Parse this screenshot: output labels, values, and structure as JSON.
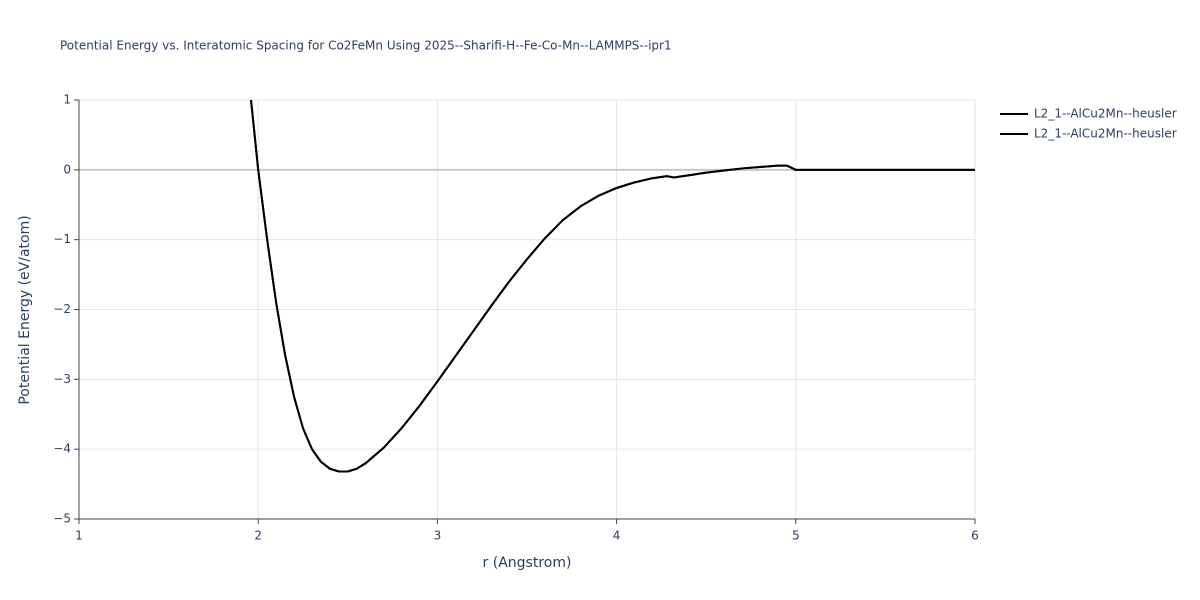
{
  "chart_data": {
    "type": "line",
    "title": "Potential Energy vs. Interatomic Spacing for Co2FeMn Using 2025--Sharifi-H--Fe-Co-Mn--LAMMPS--ipr1",
    "xlabel": "r (Angstrom)",
    "ylabel": "Potential Energy (eV/atom)",
    "x": [
      1.96,
      2.0,
      2.05,
      2.1,
      2.15,
      2.2,
      2.25,
      2.3,
      2.35,
      2.4,
      2.45,
      2.5,
      2.55,
      2.6,
      2.7,
      2.8,
      2.9,
      3.0,
      3.1,
      3.2,
      3.3,
      3.4,
      3.5,
      3.6,
      3.7,
      3.8,
      3.9,
      4.0,
      4.1,
      4.2,
      4.28,
      4.32,
      4.4,
      4.5,
      4.6,
      4.7,
      4.8,
      4.9,
      4.95,
      5.0,
      5.5,
      6.0
    ],
    "series": [
      {
        "name": "L2_1--AlCu2Mn--heusler",
        "color": "#000000",
        "values": [
          1.0,
          0.0,
          -1.0,
          -1.9,
          -2.65,
          -3.25,
          -3.7,
          -4.0,
          -4.18,
          -4.28,
          -4.32,
          -4.32,
          -4.28,
          -4.2,
          -3.98,
          -3.7,
          -3.38,
          -3.03,
          -2.67,
          -2.31,
          -1.95,
          -1.6,
          -1.28,
          -0.98,
          -0.72,
          -0.52,
          -0.37,
          -0.26,
          -0.18,
          -0.12,
          -0.09,
          -0.11,
          -0.08,
          -0.04,
          -0.01,
          0.02,
          0.04,
          0.06,
          0.06,
          0.0,
          0.0,
          0.0
        ]
      },
      {
        "name": "L2_1--AlCu2Mn--heusler",
        "color": "#000000",
        "values": [
          1.0,
          0.0,
          -1.0,
          -1.9,
          -2.65,
          -3.25,
          -3.7,
          -4.0,
          -4.18,
          -4.28,
          -4.32,
          -4.32,
          -4.28,
          -4.2,
          -3.98,
          -3.7,
          -3.38,
          -3.03,
          -2.67,
          -2.31,
          -1.95,
          -1.6,
          -1.28,
          -0.98,
          -0.72,
          -0.52,
          -0.37,
          -0.26,
          -0.18,
          -0.12,
          -0.09,
          -0.11,
          -0.08,
          -0.04,
          -0.01,
          0.02,
          0.04,
          0.06,
          0.06,
          0.0,
          0.0,
          0.0
        ]
      }
    ],
    "xlim": [
      1,
      6
    ],
    "xticks": [
      1,
      2,
      3,
      4,
      5,
      6
    ],
    "ylim": [
      -5,
      1
    ],
    "yticks": [
      1,
      0,
      {
        "value": -1,
        "label": "−1"
      },
      {
        "value": -2,
        "label": "−2"
      },
      {
        "value": -3,
        "label": "−3"
      },
      {
        "value": -4,
        "label": "−4"
      },
      {
        "value": -5,
        "label": "−5"
      }
    ],
    "grid": true
  }
}
